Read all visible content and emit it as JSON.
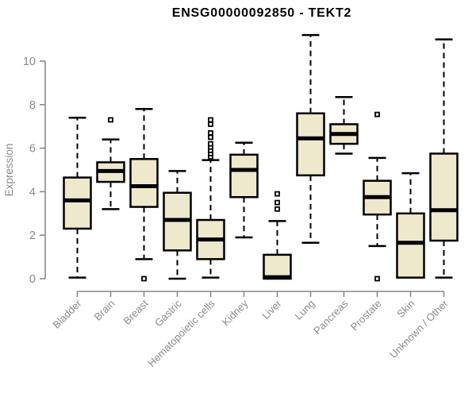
{
  "chart_data": {
    "type": "box",
    "title": "ENSG00000092850 - TEKT2",
    "xlabel": "",
    "ylabel": "Expression",
    "ylim": [
      0,
      11.3
    ],
    "yticks": [
      0,
      2,
      4,
      6,
      8,
      10
    ],
    "grid": false,
    "legend": null,
    "categories": [
      "Bladder",
      "Brain",
      "Breast",
      "Gastric",
      "Hematopoietic cells",
      "Kidney",
      "Liver",
      "Lung",
      "Pancreas",
      "Prostate",
      "Skin",
      "Unknown / Other"
    ],
    "boxes": [
      {
        "category": "Bladder",
        "low": 0.05,
        "q1": 2.3,
        "median": 3.6,
        "q3": 4.65,
        "high": 7.4,
        "outliers": []
      },
      {
        "category": "Brain",
        "low": 3.2,
        "q1": 4.45,
        "median": 4.95,
        "q3": 5.35,
        "high": 6.4,
        "outliers": [
          7.3
        ]
      },
      {
        "category": "Breast",
        "low": 0.9,
        "q1": 3.3,
        "median": 4.25,
        "q3": 5.5,
        "high": 7.8,
        "outliers": [
          0.0
        ]
      },
      {
        "category": "Gastric",
        "low": 0.0,
        "q1": 1.3,
        "median": 2.7,
        "q3": 3.95,
        "high": 4.95,
        "outliers": []
      },
      {
        "category": "Hematopoietic cells",
        "low": 0.05,
        "q1": 0.9,
        "median": 1.8,
        "q3": 2.7,
        "high": 5.45,
        "outliers": [
          5.6,
          5.75,
          5.9,
          6.05,
          6.2,
          6.5,
          6.7,
          7.1,
          7.3
        ]
      },
      {
        "category": "Kidney",
        "low": 1.9,
        "q1": 3.75,
        "median": 5.0,
        "q3": 5.7,
        "high": 6.25,
        "outliers": []
      },
      {
        "category": "Liver",
        "low": 0.0,
        "q1": 0.0,
        "median": 0.07,
        "q3": 1.1,
        "high": 2.65,
        "outliers": [
          3.2,
          3.5,
          3.9
        ]
      },
      {
        "category": "Lung",
        "low": 1.65,
        "q1": 4.75,
        "median": 6.45,
        "q3": 7.6,
        "high": 11.2,
        "outliers": []
      },
      {
        "category": "Pancreas",
        "low": 5.75,
        "q1": 6.2,
        "median": 6.65,
        "q3": 7.1,
        "high": 8.35,
        "outliers": []
      },
      {
        "category": "Prostate",
        "low": 1.5,
        "q1": 2.95,
        "median": 3.75,
        "q3": 4.5,
        "high": 5.55,
        "outliers": [
          0.0,
          7.55
        ]
      },
      {
        "category": "Skin",
        "low": 0.05,
        "q1": 0.05,
        "median": 1.65,
        "q3": 3.0,
        "high": 4.85,
        "outliers": []
      },
      {
        "category": "Unknown / Other",
        "low": 0.05,
        "q1": 1.75,
        "median": 3.15,
        "q3": 5.75,
        "high": 11.0,
        "outliers": []
      }
    ],
    "colors": {
      "box_fill": "#EEE8CD",
      "box_border": "#000000",
      "median": "#000000",
      "whisker": "#000000",
      "axis": "#8a8a8a",
      "tick_label": "#8a8a8a",
      "title": "#000000",
      "background": "#ffffff"
    }
  }
}
